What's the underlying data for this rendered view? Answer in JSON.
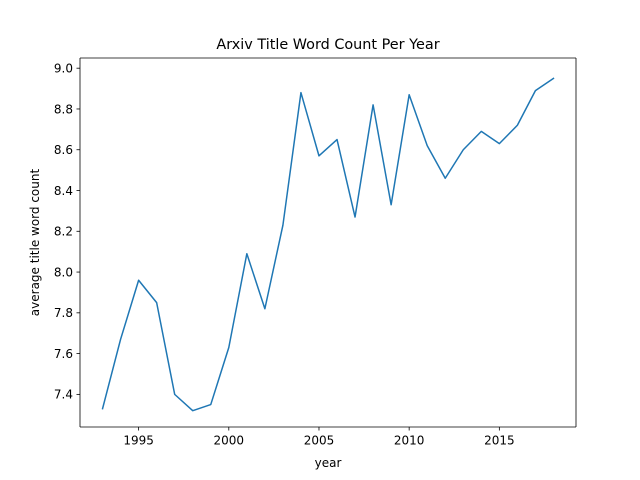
{
  "chart_data": {
    "type": "line",
    "title": "Arxiv Title Word Count Per Year",
    "xlabel": "year",
    "ylabel": "average title word count",
    "xlim": [
      1991.75,
      2019.25
    ],
    "ylim": [
      7.24,
      9.05
    ],
    "xticks": [
      1995,
      2000,
      2005,
      2010,
      2015
    ],
    "yticks": [
      7.4,
      7.6,
      7.8,
      8.0,
      8.2,
      8.4,
      8.6,
      8.8,
      9.0
    ],
    "xtick_labels": [
      "1995",
      "2000",
      "2005",
      "2010",
      "2015"
    ],
    "ytick_labels": [
      "7.4",
      "7.6",
      "7.8",
      "8.0",
      "8.2",
      "8.4",
      "8.6",
      "8.8",
      "9.0"
    ],
    "grid": false,
    "legend": false,
    "series": [
      {
        "color": "#1f77b4",
        "x": [
          1993,
          1994,
          1995,
          1996,
          1997,
          1998,
          1999,
          2000,
          2001,
          2002,
          2003,
          2004,
          2005,
          2006,
          2007,
          2008,
          2009,
          2010,
          2011,
          2012,
          2013,
          2014,
          2015,
          2016,
          2017,
          2018
        ],
        "y": [
          7.33,
          7.67,
          7.96,
          7.85,
          7.4,
          7.32,
          7.35,
          7.63,
          8.09,
          7.82,
          8.23,
          8.88,
          8.57,
          8.65,
          8.27,
          8.82,
          8.33,
          8.87,
          8.62,
          8.46,
          8.6,
          8.69,
          8.63,
          8.72,
          8.89,
          8.95
        ]
      }
    ]
  }
}
